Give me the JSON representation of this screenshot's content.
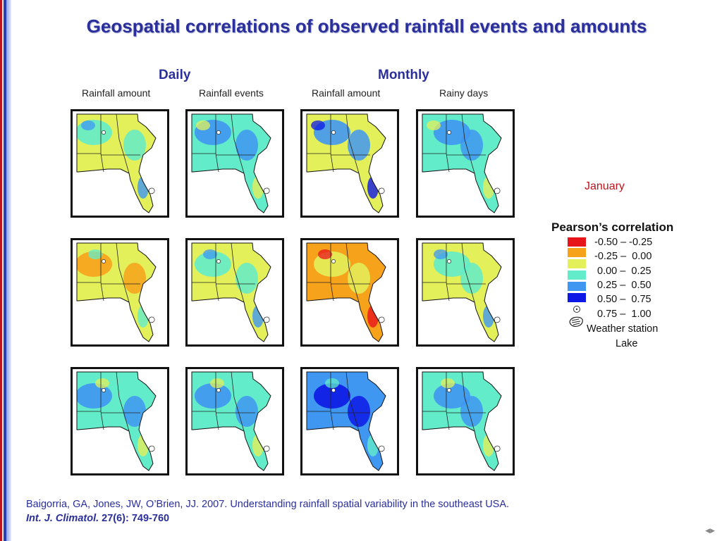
{
  "title": "Geospatial correlations of observed rainfall events and amounts",
  "groups": {
    "daily": "Daily",
    "monthly": "Monthly"
  },
  "columns": [
    "Rainfall amount",
    "Rainfall events",
    "Rainfall amount",
    "Rainy days"
  ],
  "month_label": "January",
  "legend": {
    "title": "Pearson’s correlation",
    "items": [
      {
        "label": "-0.50 – -0.25",
        "color": "#e8141c"
      },
      {
        "label": "-0.25 –  0.00",
        "color": "#f7a21b"
      },
      {
        "label": " 0.00 –  0.25",
        "color": "#e3f05a"
      },
      {
        "label": " 0.25 –  0.50",
        "color": "#63ecc9"
      },
      {
        "label": " 0.50 –  0.75",
        "color": "#3f97f2"
      },
      {
        "label": " 0.75 –  1.00",
        "color": "#0d18e6"
      }
    ],
    "station_label": "Weather station",
    "lake_label": "Lake"
  },
  "citation": {
    "line1": "Baigorria, GA, Jones, JW, O’Brien, JJ. 2007. Understanding rainfall spatial variability in the southeast USA.",
    "journal": "Int. J. Climatol.",
    "ref": " 27(6): 749-760"
  },
  "colors": {
    "accent": "#2b2f9b",
    "side_red": "#c0141c",
    "side_blue": "#2a3fb0"
  },
  "panel_palette": {
    "rows": [
      [
        "yellow-blue",
        "cyan-blue",
        "yellow-darkblue",
        "cyan-blue"
      ],
      [
        "yellow-orange",
        "yellow-cyan",
        "orange-red",
        "yellow-cyan"
      ],
      [
        "cyan-blue",
        "cyan-blue",
        "blue-darkblue",
        "cyan-blue"
      ]
    ]
  }
}
